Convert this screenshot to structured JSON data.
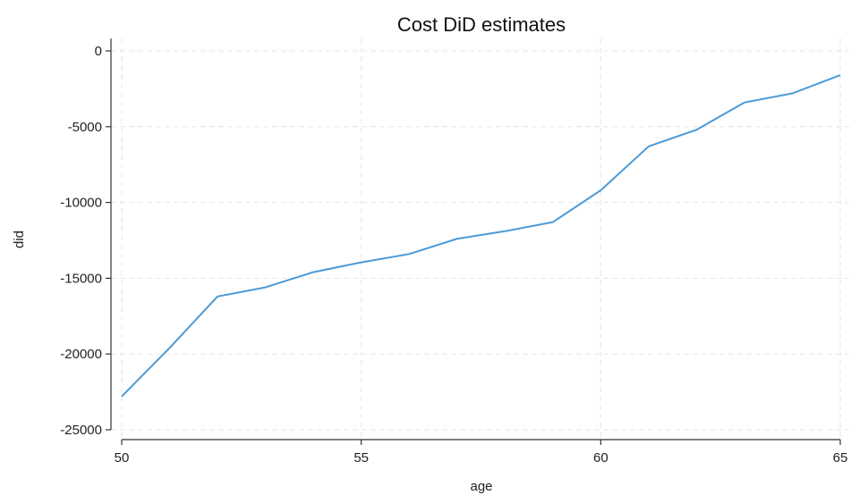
{
  "chart_data": {
    "type": "line",
    "title": "Cost DiD estimates",
    "xlabel": "age",
    "ylabel": "did",
    "xlim": [
      50,
      65
    ],
    "ylim": [
      -25000,
      0
    ],
    "xticks": [
      50,
      55,
      60,
      65
    ],
    "yticks": [
      0,
      -5000,
      -10000,
      -15000,
      -20000,
      -25000
    ],
    "grid": true,
    "series": [
      {
        "color": "#4a9ad8",
        "points": [
          {
            "x": 50,
            "y": -22800
          },
          {
            "x": 51,
            "y": -19600
          },
          {
            "x": 52,
            "y": -16200
          },
          {
            "x": 53,
            "y": -15600
          },
          {
            "x": 54,
            "y": -14600
          },
          {
            "x": 55,
            "y": -13950
          },
          {
            "x": 56,
            "y": -13400
          },
          {
            "x": 57,
            "y": -12400
          },
          {
            "x": 58,
            "y": -11900
          },
          {
            "x": 59,
            "y": -11300
          },
          {
            "x": 60,
            "y": -9200
          },
          {
            "x": 61,
            "y": -6300
          },
          {
            "x": 62,
            "y": -5200
          },
          {
            "x": 63,
            "y": -3400
          },
          {
            "x": 64,
            "y": -2800
          },
          {
            "x": 65,
            "y": -1600
          }
        ]
      }
    ]
  }
}
